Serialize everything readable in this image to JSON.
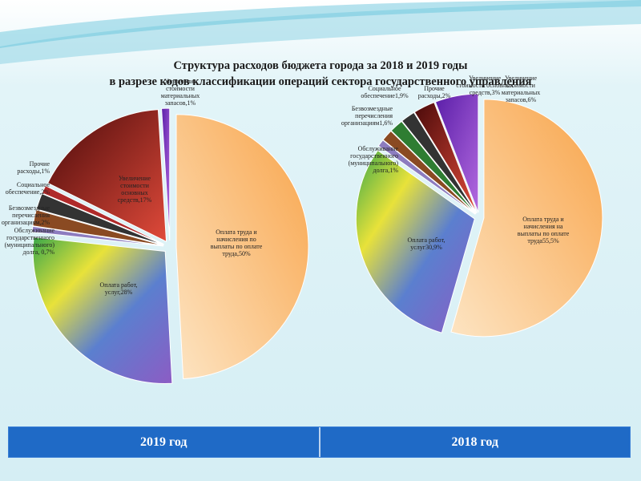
{
  "title": {
    "line1": "Структура расходов бюджета города за 2018 и 2019 годы",
    "line2": "в разрезе кодов классификации операций сектора государственного управления"
  },
  "footer": {
    "left_label": "2019 год",
    "right_label": "2018 год"
  },
  "chart_data": [
    {
      "type": "pie",
      "name": "2019 год",
      "slices": [
        {
          "label": "Оплата труда и начисления по выплаты по оплате труда,50%",
          "value": 50,
          "color": "#f9b974"
        },
        {
          "label": "Оплата работ, услуг,28%",
          "value": 28,
          "color": "#5b7fcf"
        },
        {
          "label": "Обслуживание государственного (муниципального) долга, 0,7%",
          "value": 0.7,
          "color": "#8c7cbf"
        },
        {
          "label": "Безвозмездные перечисления организациям,2%",
          "value": 2,
          "color": "#8a4a22"
        },
        {
          "label": "Социальное обеспечение,2%",
          "value": 2,
          "color": "#333333"
        },
        {
          "label": "Прочие расходы,1%",
          "value": 1,
          "color": "#b02a2a"
        },
        {
          "label": "Увеличение стоимости основных средств,17%",
          "value": 17,
          "color": "#8c1818"
        },
        {
          "label": "Увеличение стоимости материальных запасов,1%",
          "value": 1,
          "color": "#7a2cc4"
        }
      ]
    },
    {
      "type": "pie",
      "name": "2018 год",
      "slices": [
        {
          "label": "Оплата труда и начисления на выплаты по оплате труда55,5%",
          "value": 55.5,
          "color": "#f9b974"
        },
        {
          "label": "Оплата работ, услуг30,9%",
          "value": 30.9,
          "color": "#5b7fcf"
        },
        {
          "label": "Обслуживание государственного (муниципального) долга,1%",
          "value": 1,
          "color": "#8c7cbf"
        },
        {
          "label": "Безвозмездные перечисления организациям1,6%",
          "value": 1.6,
          "color": "#8a4a22"
        },
        {
          "label": "Социальное обеспечение1,9%",
          "value": 1.9,
          "color": "#2e7d32"
        },
        {
          "label": "Прочие расходы,2%",
          "value": 2,
          "color": "#333333"
        },
        {
          "label": "Увеличение стоимости основных средств,3%",
          "value": 3,
          "color": "#8c1818"
        },
        {
          "label": "Увеличение стоимости материальных запасов,6%",
          "value": 6,
          "color": "#7a2cc4"
        }
      ]
    }
  ]
}
